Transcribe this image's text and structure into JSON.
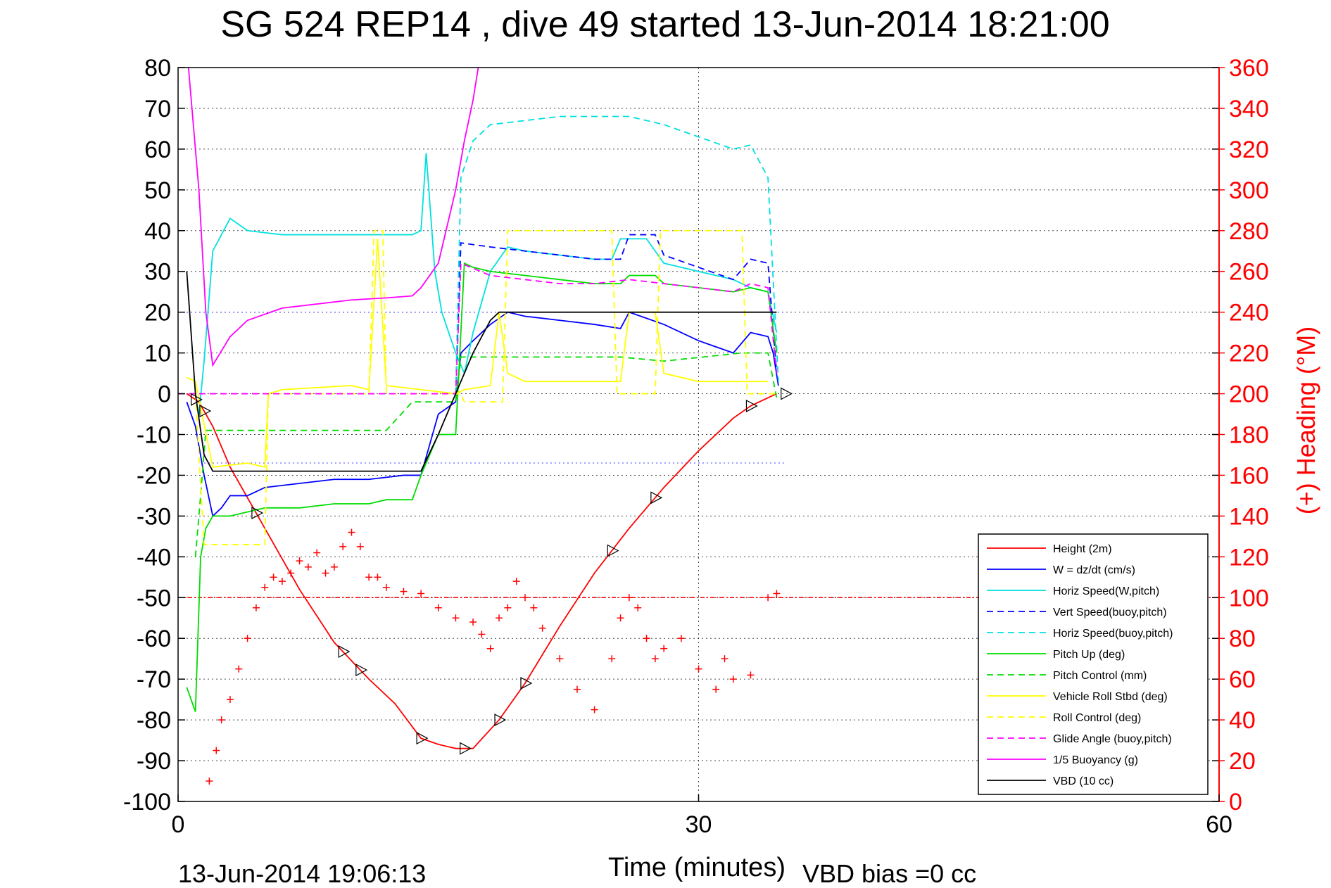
{
  "chart_data": {
    "type": "line",
    "title": "SG 524   REP14  , dive 49 started 13-Jun-2014 18:21:00",
    "xlabel": "Time (minutes)",
    "ylabel": "",
    "y2label": "(+) Heading (°M)",
    "xlim": [
      0,
      60
    ],
    "ylim": [
      -100,
      80
    ],
    "y2lim": [
      0,
      360
    ],
    "xticks": [
      "0",
      "30",
      "60"
    ],
    "yticks": [
      "80",
      "70",
      "60",
      "50",
      "40",
      "30",
      "20",
      "10",
      "0",
      "-10",
      "-20",
      "-30",
      "-40",
      "-50",
      "-60",
      "-70",
      "-80",
      "-90",
      "-100"
    ],
    "y2ticks": [
      "360",
      "340",
      "320",
      "300",
      "280",
      "260",
      "240",
      "220",
      "200",
      "180",
      "160",
      "140",
      "120",
      "100",
      "80",
      "60",
      "40",
      "20",
      "0"
    ],
    "grid": true,
    "legend_position": "bottom-right",
    "footer_left": "13-Jun-2014 19:06:13",
    "footer_right": "VBD bias =0 cc",
    "colors": {
      "height": "#ff0000",
      "w": "#0000ff",
      "horiz_w": "#00e0e0",
      "vert_buoy": "#0000ff",
      "horiz_buoy": "#00e0e0",
      "pitch": "#00dd00",
      "pitch_control": "#00dd00",
      "roll": "#ffff00",
      "roll_control": "#ffff00",
      "glide": "#ff00ff",
      "buoyancy": "#ff00ff",
      "vbd": "#000000",
      "heading": "#ff0000"
    },
    "series": [
      {
        "name": "Height (2m)",
        "key": "height",
        "style": "solid",
        "x": [
          0.5,
          1.2,
          2,
          3,
          5,
          7,
          9,
          11,
          12.5,
          14,
          15,
          16,
          17,
          18.5,
          20,
          22,
          24,
          26,
          28,
          30,
          32,
          33,
          34,
          34.5
        ],
        "y": [
          0,
          -2,
          -8,
          -18,
          -33,
          -48,
          -61,
          -70,
          -76,
          -84.5,
          -86,
          -87,
          -87,
          -80,
          -71,
          -57,
          -44,
          -33,
          -23,
          -14,
          -6,
          -3,
          -1,
          0
        ]
      },
      {
        "name": "W = dz/dt (cm/s)",
        "key": "w",
        "style": "solid",
        "x": [
          0.5,
          1,
          1.5,
          2,
          2.5,
          3,
          4,
          5,
          7,
          9,
          11,
          13,
          14,
          15,
          16,
          16.3,
          17,
          18,
          19,
          20,
          22,
          24,
          25.5,
          26,
          28,
          30,
          32,
          33,
          34,
          34.3,
          34.6
        ],
        "y": [
          -2,
          -8,
          -20,
          -30,
          -28,
          -25,
          -25,
          -23,
          -22,
          -21,
          -21,
          -20,
          -20,
          -5,
          -2,
          10,
          13,
          17,
          20,
          19,
          18,
          17,
          16,
          20,
          17,
          13,
          10,
          15,
          14,
          10,
          2
        ]
      },
      {
        "name": "Horiz Speed(W,pitch)",
        "key": "horiz_w",
        "style": "solid",
        "x": [
          1.2,
          1.5,
          2,
          3,
          4,
          6,
          8,
          10,
          12,
          13.5,
          14,
          14.3,
          14.8,
          15.2,
          16,
          16.5,
          17,
          18,
          19,
          20,
          22,
          24,
          25,
          25.5,
          27,
          28,
          30,
          32,
          33,
          34,
          34.5
        ],
        "y": [
          -5,
          8,
          35,
          43,
          40,
          39,
          39,
          39,
          39,
          39,
          40,
          59,
          30,
          20,
          10,
          5,
          15,
          30,
          36,
          35,
          34,
          33,
          33,
          38,
          38,
          32,
          30,
          28,
          26,
          25,
          15
        ]
      },
      {
        "name": "Vert Speed(buoy,pitch)",
        "key": "vert_buoy",
        "style": "dashed",
        "x": [
          16,
          16.3,
          18,
          20,
          22,
          24,
          25.5,
          26,
          27.5,
          28,
          30,
          32,
          33,
          34,
          34.5
        ],
        "y": [
          0,
          37,
          36,
          35,
          34,
          33,
          33,
          39,
          39,
          34,
          31,
          28,
          33,
          32,
          5
        ]
      },
      {
        "name": "Horiz Speed(buoy,pitch)",
        "key": "horiz_buoy",
        "style": "dashed",
        "x": [
          16,
          16.3,
          17,
          18,
          20,
          22,
          24,
          26,
          28,
          30,
          32,
          33,
          34,
          34.6
        ],
        "y": [
          0,
          53,
          62,
          66,
          67,
          68,
          68,
          68,
          66,
          63,
          60,
          61,
          53,
          3
        ]
      },
      {
        "name": "Pitch Up (deg)",
        "key": "pitch",
        "style": "solid",
        "x": [
          0.5,
          1,
          1.3,
          1.6,
          2,
          3,
          5,
          7,
          9,
          11,
          12,
          13.5,
          14,
          14.5,
          15,
          16,
          16.5,
          17,
          18,
          20,
          22,
          24,
          25.5,
          26,
          27.5,
          28,
          30,
          32,
          33,
          34,
          34.5
        ],
        "y": [
          -72,
          -78,
          -40,
          -33,
          -30,
          -30,
          -28,
          -28,
          -27,
          -27,
          -26,
          -26,
          -20,
          -15,
          -10,
          -10,
          32,
          31,
          30,
          29,
          28,
          27,
          27,
          29,
          29,
          27,
          26,
          25,
          26,
          25,
          10
        ]
      },
      {
        "name": "Pitch Control (mm)",
        "key": "pitch_control",
        "style": "dashed",
        "x": [
          1,
          1.3,
          1.6,
          6,
          12,
          13.5,
          16,
          16.3,
          20,
          25.5,
          28,
          32.5,
          34,
          34.5
        ],
        "y": [
          -40,
          -25,
          -9,
          -9,
          -9,
          -2,
          -2,
          9,
          9,
          9,
          8,
          10,
          10,
          -1
        ]
      },
      {
        "name": "Vehicle Roll Stbd (deg)",
        "key": "roll",
        "style": "solid",
        "x": [
          0.5,
          1,
          2,
          4,
          5,
          5.2,
          6,
          10,
          11,
          11.5,
          12,
          14,
          16,
          16.5,
          18,
          18.5,
          19,
          20,
          24,
          25.5,
          26,
          27.5,
          28,
          30,
          32,
          33,
          34
        ],
        "y": [
          4,
          3,
          -18,
          -17,
          -18,
          0,
          1,
          2,
          1,
          38,
          2,
          1,
          0,
          1,
          2,
          20,
          5,
          3,
          3,
          3,
          20,
          20,
          5,
          3,
          3,
          3,
          3
        ]
      },
      {
        "name": "Roll Control (deg)",
        "key": "roll_control",
        "style": "dashed",
        "x": [
          1,
          1.5,
          5,
          5.2,
          11,
          11.3,
          11.8,
          12,
          16.3,
          16.5,
          18.7,
          19,
          25,
          25.3,
          27.5,
          27.8,
          32.5,
          32.8,
          34,
          34.5
        ],
        "y": [
          0,
          -37,
          -37,
          0,
          0,
          40,
          40,
          0,
          0,
          -2,
          -2,
          40,
          40,
          0,
          0,
          40,
          40,
          0,
          0,
          0
        ]
      },
      {
        "name": "Glide Angle (buoy,pitch)",
        "key": "glide",
        "style": "dashed",
        "x": [
          0,
          16,
          16.3,
          18,
          20,
          22,
          24,
          26,
          28,
          30,
          32,
          33,
          34,
          34.5
        ],
        "y": [
          0,
          0,
          32,
          29,
          28,
          27,
          27,
          28,
          27,
          26,
          25,
          27,
          26,
          5
        ]
      },
      {
        "name": "1/5 Buoyancy (g)",
        "key": "buoyancy",
        "style": "solid",
        "x": [
          0.6,
          0.9,
          1.2,
          1.6,
          2,
          3,
          4,
          6,
          8,
          10,
          12,
          13.5,
          14,
          15,
          16,
          16.5,
          17,
          17.3
        ],
        "y": [
          80,
          65,
          50,
          20,
          7,
          14,
          18,
          21,
          22,
          23,
          23.5,
          24,
          26,
          32,
          50,
          62,
          72,
          80
        ]
      },
      {
        "name": "VBD (10 cc)",
        "key": "vbd",
        "style": "solid",
        "x": [
          0.5,
          1,
          1.5,
          2,
          3,
          6,
          10,
          13.5,
          14,
          15,
          16,
          17,
          18,
          18.5,
          20,
          25,
          30,
          34.5
        ],
        "y": [
          30,
          0,
          -15,
          -19,
          -19,
          -19,
          -19,
          -19,
          -19,
          -10,
          0,
          10,
          18,
          20,
          20,
          20,
          20,
          20
        ]
      }
    ],
    "heading": {
      "name": "Heading (°M)",
      "axis": "right",
      "x": [
        1.8,
        2.2,
        2.5,
        3,
        3.5,
        4,
        4.5,
        5,
        5.5,
        6,
        6.5,
        7,
        7.5,
        8,
        8.5,
        9,
        9.5,
        10,
        10.5,
        11,
        11.5,
        12,
        13,
        14,
        15,
        16,
        17,
        17.5,
        18,
        18.5,
        19,
        19.5,
        20,
        20.5,
        21,
        22,
        23,
        24,
        25,
        25.5,
        26,
        26.5,
        27,
        27.5,
        28,
        29,
        30,
        31,
        31.5,
        32,
        33,
        34,
        34.5
      ],
      "y": [
        10,
        25,
        40,
        50,
        65,
        80,
        95,
        105,
        110,
        108,
        112,
        118,
        115,
        122,
        112,
        115,
        125,
        132,
        125,
        110,
        110,
        105,
        103,
        102,
        95,
        90,
        88,
        82,
        75,
        90,
        95,
        108,
        100,
        95,
        85,
        70,
        55,
        45,
        70,
        90,
        100,
        95,
        80,
        70,
        75,
        80,
        65,
        55,
        70,
        60,
        62,
        100,
        102
      ]
    },
    "heading_ref": 100,
    "vbd_ref": -17,
    "blue_ref": 20,
    "markers_x": [
      1,
      1.5,
      4.5,
      9.5,
      10.5,
      14,
      16.5,
      18.5,
      20,
      25,
      27.5,
      33,
      35
    ]
  }
}
